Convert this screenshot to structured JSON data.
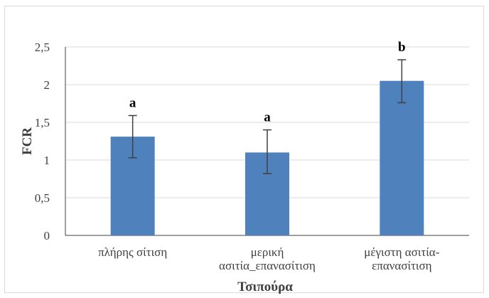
{
  "chart_data": {
    "type": "bar",
    "title": "",
    "xlabel": "Τσιπούρα",
    "ylabel": "FCR",
    "ylim": [
      0,
      2.5
    ],
    "yticks": [
      "0",
      "0,5",
      "1",
      "1,5",
      "2",
      "2,5"
    ],
    "grid": true,
    "categories": [
      [
        "πλήρης σίτιση"
      ],
      [
        "μερική",
        "ασιτία_επανασίτιση"
      ],
      [
        "μέγιστη ασιτία-",
        "επανασίτιση"
      ]
    ],
    "values": [
      1.31,
      1.1,
      2.05
    ],
    "error_low": [
      1.03,
      0.82,
      1.76
    ],
    "error_high": [
      1.59,
      1.4,
      2.33
    ],
    "bar_labels": [
      "a",
      "a",
      "b"
    ],
    "colors": {
      "bar": "#4f81bd",
      "error": "#404040",
      "grid": "#d9d9d9",
      "axis": "#404040"
    }
  }
}
